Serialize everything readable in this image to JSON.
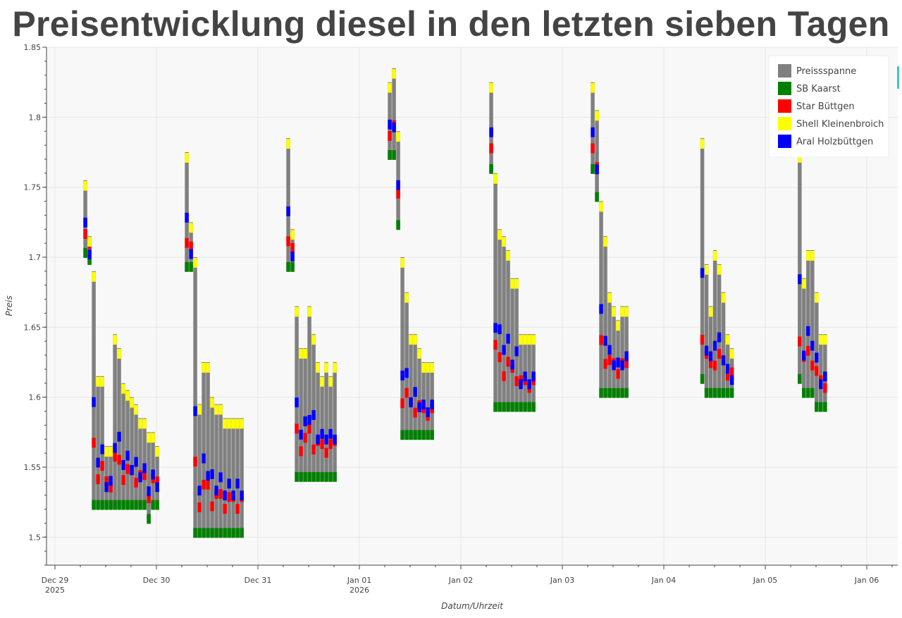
{
  "chart_data": {
    "type": "bar",
    "title": "Preisentwicklung diesel in den letzten sieben Tagen",
    "xlabel": "Datum/Uhrzeit",
    "ylabel": "Preis",
    "ylim": [
      1.48,
      1.85
    ],
    "grid": true,
    "legend_position": "top-right",
    "x_ticks": [
      {
        "day": 0,
        "line1": "Dec 29",
        "line2": "2025"
      },
      {
        "day": 1,
        "line1": "Dec 30",
        "line2": ""
      },
      {
        "day": 2,
        "line1": "Dec 31",
        "line2": ""
      },
      {
        "day": 3,
        "line1": "Jan 01",
        "line2": "2026"
      },
      {
        "day": 4,
        "line1": "Jan 02",
        "line2": ""
      },
      {
        "day": 5,
        "line1": "Jan 03",
        "line2": ""
      },
      {
        "day": 6,
        "line1": "Jan 04",
        "line2": ""
      },
      {
        "day": 7,
        "line1": "Jan 05",
        "line2": ""
      },
      {
        "day": 8,
        "line1": "Jan 06",
        "line2": ""
      }
    ],
    "xlim_days": [
      -0.1,
      8.3
    ],
    "y_ticks": [
      "1.5",
      "1.55",
      "1.6",
      "1.65",
      "1.7",
      "1.75",
      "1.8",
      "1.85"
    ],
    "legend": [
      {
        "label": "Preissspanne",
        "color": "#808080"
      },
      {
        "label": "SB Kaarst",
        "color": "#008000"
      },
      {
        "label": "Star Büttgen",
        "color": "#ff0000"
      },
      {
        "label": "Shell Kleinenbroich",
        "color": "#ffff00"
      },
      {
        "label": "Aral Holzbüttgen",
        "color": "#0000ff"
      }
    ],
    "series_note": "Each day: x offset in days, [min, max] price range per hourly slot",
    "days": [
      {
        "start": 0.28,
        "ranges": [
          [
            1.7,
            1.755
          ],
          [
            1.695,
            1.715
          ],
          [
            1.52,
            1.69
          ],
          [
            1.52,
            1.615
          ],
          [
            1.52,
            1.615
          ],
          [
            1.52,
            1.565
          ],
          [
            1.52,
            1.565
          ],
          [
            1.52,
            1.645
          ],
          [
            1.52,
            1.635
          ],
          [
            1.52,
            1.61
          ],
          [
            1.52,
            1.605
          ],
          [
            1.52,
            1.6
          ],
          [
            1.52,
            1.595
          ],
          [
            1.52,
            1.585
          ],
          [
            1.52,
            1.585
          ],
          [
            1.51,
            1.575
          ],
          [
            1.52,
            1.575
          ],
          [
            1.52,
            1.565
          ]
        ]
      },
      {
        "start": 1.28,
        "ranges": [
          [
            1.69,
            1.775
          ],
          [
            1.69,
            1.725
          ],
          [
            1.5,
            1.7
          ],
          [
            1.5,
            1.595
          ],
          [
            1.5,
            1.625
          ],
          [
            1.5,
            1.625
          ],
          [
            1.5,
            1.6
          ],
          [
            1.5,
            1.595
          ],
          [
            1.5,
            1.595
          ],
          [
            1.5,
            1.585
          ],
          [
            1.5,
            1.585
          ],
          [
            1.5,
            1.585
          ],
          [
            1.5,
            1.585
          ],
          [
            1.5,
            1.585
          ]
        ]
      },
      {
        "start": 2.28,
        "ranges": [
          [
            1.69,
            1.785
          ],
          [
            1.69,
            1.72
          ],
          [
            1.54,
            1.665
          ],
          [
            1.54,
            1.635
          ],
          [
            1.54,
            1.635
          ],
          [
            1.54,
            1.665
          ],
          [
            1.54,
            1.645
          ],
          [
            1.54,
            1.625
          ],
          [
            1.54,
            1.615
          ],
          [
            1.54,
            1.625
          ],
          [
            1.54,
            1.615
          ],
          [
            1.54,
            1.625
          ]
        ]
      },
      {
        "start": 3.28,
        "ranges": [
          [
            1.77,
            1.825
          ],
          [
            1.77,
            1.835
          ],
          [
            1.72,
            1.79
          ],
          [
            1.57,
            1.7
          ],
          [
            1.57,
            1.675
          ],
          [
            1.57,
            1.645
          ],
          [
            1.57,
            1.645
          ],
          [
            1.57,
            1.635
          ],
          [
            1.57,
            1.625
          ],
          [
            1.57,
            1.625
          ],
          [
            1.57,
            1.625
          ]
        ]
      },
      {
        "start": 4.28,
        "ranges": [
          [
            1.76,
            1.825
          ],
          [
            1.59,
            1.76
          ],
          [
            1.59,
            1.72
          ],
          [
            1.59,
            1.715
          ],
          [
            1.59,
            1.705
          ],
          [
            1.59,
            1.685
          ],
          [
            1.59,
            1.685
          ],
          [
            1.59,
            1.645
          ],
          [
            1.59,
            1.645
          ],
          [
            1.59,
            1.645
          ],
          [
            1.59,
            1.645
          ]
        ]
      },
      {
        "start": 5.28,
        "ranges": [
          [
            1.76,
            1.825
          ],
          [
            1.74,
            1.805
          ],
          [
            1.6,
            1.74
          ],
          [
            1.6,
            1.715
          ],
          [
            1.6,
            1.675
          ],
          [
            1.6,
            1.665
          ],
          [
            1.6,
            1.655
          ],
          [
            1.6,
            1.665
          ],
          [
            1.6,
            1.665
          ]
        ]
      },
      {
        "start": 6.36,
        "ranges": [
          [
            1.61,
            1.785
          ],
          [
            1.6,
            1.695
          ],
          [
            1.6,
            1.665
          ],
          [
            1.6,
            1.705
          ],
          [
            1.6,
            1.695
          ],
          [
            1.6,
            1.675
          ],
          [
            1.6,
            1.645
          ],
          [
            1.6,
            1.635
          ]
        ]
      },
      {
        "start": 7.32,
        "ranges": [
          [
            1.61,
            1.775
          ],
          [
            1.6,
            1.685
          ],
          [
            1.6,
            1.705
          ],
          [
            1.6,
            1.705
          ],
          [
            1.59,
            1.675
          ],
          [
            1.59,
            1.645
          ],
          [
            1.59,
            1.645
          ]
        ]
      }
    ]
  }
}
